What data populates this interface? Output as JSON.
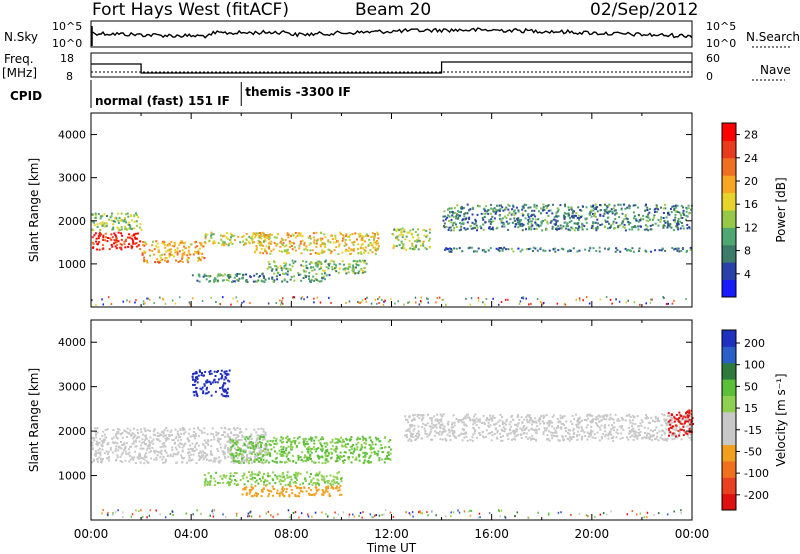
{
  "header": {
    "radar": "Fort Hays West (fitACF)",
    "beam": "Beam 20",
    "date": "02/Sep/2012"
  },
  "strips": {
    "nsky_label": "N.Sky",
    "nsearch_label": "N.Search",
    "noise_ticks": [
      "10^5",
      "10^0"
    ],
    "freq_label_1": "Freq.",
    "freq_label_2": "[MHz]",
    "freq_ticks": [
      "18",
      "8"
    ],
    "nave_label": "Nave",
    "nave_ticks": [
      "60",
      "0"
    ],
    "cpid_label": "CPID",
    "cpid_segments": [
      {
        "label": "normal (fast) 151 IF",
        "start_h": 0,
        "end_h": 6
      },
      {
        "label": "themis -3300 IF",
        "start_h": 6,
        "end_h": 24
      }
    ]
  },
  "colors": {
    "power_scale": [
      "#1a1aff",
      "#2b3fa8",
      "#3c7a6a",
      "#4fa872",
      "#96c84a",
      "#e6d42c",
      "#f5a623",
      "#f07022",
      "#e83a1c",
      "#ff0000"
    ],
    "velocity_scale": [
      "#1f2fbf",
      "#2a5fc8",
      "#2e7a3c",
      "#5bbf3a",
      "#90d050",
      "#c8c8c8",
      "#c8c8c8",
      "#f0a020",
      "#f07020",
      "#e84020",
      "#e01010"
    ]
  },
  "chart_data": [
    {
      "type": "heatmap",
      "quantity": "Power",
      "ylabel": "Slant Range [km]",
      "xlim": [
        "00:00",
        "24:00"
      ],
      "ylim": [
        0,
        4500
      ],
      "yticks": [
        "1000",
        "2000",
        "3000",
        "4000"
      ],
      "colorbar_label": "Power [dB]",
      "colorbar_ticks": [
        "4",
        "8",
        "12",
        "16",
        "20",
        "24",
        "28"
      ],
      "regions": [
        {
          "start_h": 0.0,
          "end_h": 2.0,
          "range_km": [
            1350,
            1750
          ],
          "level": 26
        },
        {
          "start_h": 0.0,
          "end_h": 2.0,
          "range_km": [
            1800,
            2200
          ],
          "level": 12
        },
        {
          "start_h": 2.0,
          "end_h": 4.5,
          "range_km": [
            1050,
            1550
          ],
          "level": 18
        },
        {
          "start_h": 4.5,
          "end_h": 7.0,
          "range_km": [
            1450,
            1750
          ],
          "level": 14
        },
        {
          "start_h": 6.5,
          "end_h": 11.5,
          "range_km": [
            1250,
            1750
          ],
          "level": 16
        },
        {
          "start_h": 7.0,
          "end_h": 11.0,
          "range_km": [
            800,
            1100
          ],
          "level": 10
        },
        {
          "start_h": 4.0,
          "end_h": 9.5,
          "range_km": [
            600,
            800
          ],
          "level": 8
        },
        {
          "start_h": 12.0,
          "end_h": 13.5,
          "range_km": [
            1350,
            1850
          ],
          "level": 12
        },
        {
          "start_h": 14.0,
          "end_h": 24.0,
          "range_km": [
            1800,
            2400
          ],
          "level": 7
        },
        {
          "start_h": 14.0,
          "end_h": 24.0,
          "range_km": [
            1300,
            1400
          ],
          "level": 6
        }
      ]
    },
    {
      "type": "heatmap",
      "quantity": "Velocity",
      "ylabel": "Slant Range [km]",
      "xlabel": "Time UT",
      "xlim": [
        "00:00",
        "24:00"
      ],
      "ylim": [
        0,
        4500
      ],
      "xticks": [
        "00:00",
        "04:00",
        "08:00",
        "12:00",
        "16:00",
        "20:00",
        "00:00"
      ],
      "yticks": [
        "1000",
        "2000",
        "3000",
        "4000"
      ],
      "colorbar_label": "Velocity [m s⁻¹]",
      "colorbar_ticks": [
        "200",
        "100",
        "50",
        "15",
        "-15",
        "-50",
        "-100",
        "-200"
      ],
      "regions": [
        {
          "start_h": 0.0,
          "end_h": 7.0,
          "range_km": [
            1300,
            2100
          ],
          "level": 0
        },
        {
          "start_h": 5.5,
          "end_h": 12.0,
          "range_km": [
            1300,
            1900
          ],
          "level": 40
        },
        {
          "start_h": 4.5,
          "end_h": 10.0,
          "range_km": [
            800,
            1100
          ],
          "level": 30
        },
        {
          "start_h": 6.0,
          "end_h": 10.0,
          "range_km": [
            550,
            800
          ],
          "level": -40
        },
        {
          "start_h": 12.5,
          "end_h": 24.0,
          "range_km": [
            1800,
            2400
          ],
          "level": 0
        },
        {
          "start_h": 4.0,
          "end_h": 5.5,
          "range_km": [
            2800,
            3400
          ],
          "level": 180
        },
        {
          "start_h": 23.0,
          "end_h": 24.0,
          "range_km": [
            1900,
            2500
          ],
          "level": -120
        }
      ]
    }
  ]
}
